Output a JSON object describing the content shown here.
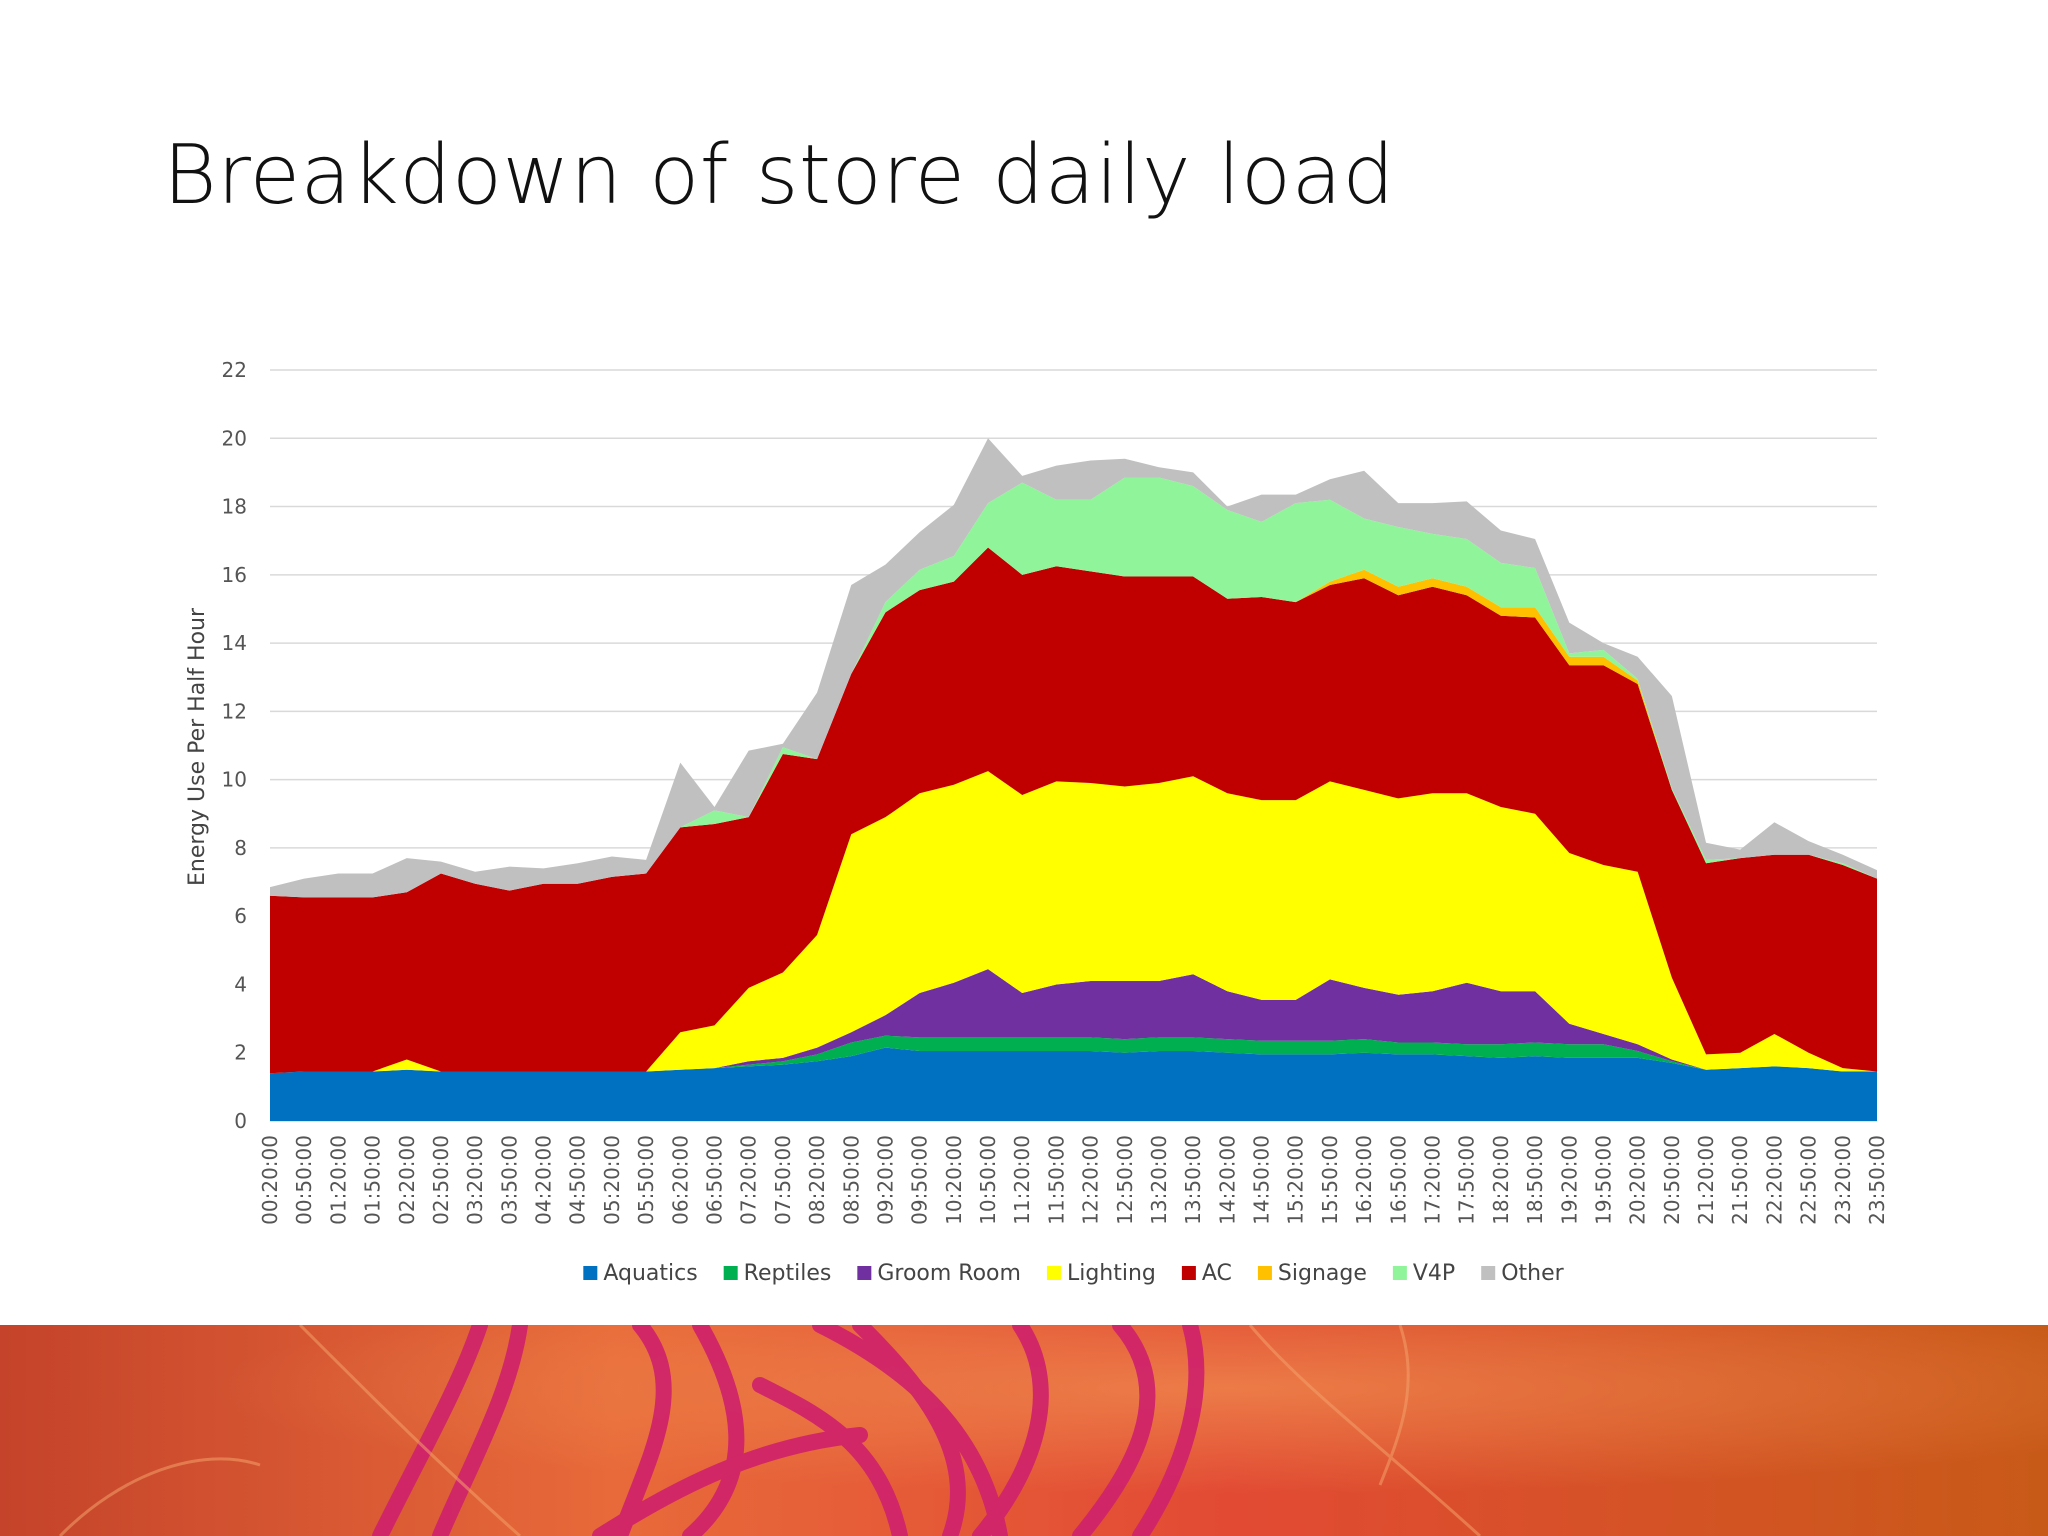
{
  "slide": {
    "title": "Breakdown of store daily load"
  },
  "chart_data": {
    "type": "area",
    "stacked": true,
    "title": "",
    "xlabel": "",
    "ylabel": "Energy Use Per Half Hour",
    "ylim": [
      0,
      22
    ],
    "yticks": [
      0,
      2,
      4,
      6,
      8,
      10,
      12,
      14,
      16,
      18,
      20,
      22
    ],
    "grid": true,
    "legend_position": "bottom",
    "x": [
      "00:20:00",
      "00:50:00",
      "01:20:00",
      "01:50:00",
      "02:20:00",
      "02:50:00",
      "03:20:00",
      "03:50:00",
      "04:20:00",
      "04:50:00",
      "05:20:00",
      "05:50:00",
      "06:20:00",
      "06:50:00",
      "07:20:00",
      "07:50:00",
      "08:20:00",
      "08:50:00",
      "09:20:00",
      "09:50:00",
      "10:20:00",
      "10:50:00",
      "11:20:00",
      "11:50:00",
      "12:20:00",
      "12:50:00",
      "13:20:00",
      "13:50:00",
      "14:20:00",
      "14:50:00",
      "15:20:00",
      "15:50:00",
      "16:20:00",
      "16:50:00",
      "17:20:00",
      "17:50:00",
      "18:20:00",
      "18:50:00",
      "19:20:00",
      "19:50:00",
      "20:20:00",
      "20:50:00",
      "21:20:00",
      "21:50:00",
      "22:20:00",
      "22:50:00",
      "23:20:00",
      "23:50:00"
    ],
    "series": [
      {
        "name": "Aquatics",
        "color": "#0070c0",
        "values": [
          1.4,
          1.45,
          1.45,
          1.45,
          1.5,
          1.45,
          1.45,
          1.45,
          1.45,
          1.45,
          1.45,
          1.45,
          1.5,
          1.55,
          1.6,
          1.65,
          1.75,
          1.9,
          2.15,
          2.05,
          2.05,
          2.05,
          2.05,
          2.05,
          2.05,
          2.0,
          2.05,
          2.05,
          2.0,
          1.95,
          1.95,
          1.95,
          2.0,
          1.95,
          1.95,
          1.9,
          1.85,
          1.9,
          1.85,
          1.85,
          1.85,
          1.7,
          1.5,
          1.55,
          1.6,
          1.55,
          1.45,
          1.45
        ]
      },
      {
        "name": "Reptiles",
        "color": "#00b050",
        "values": [
          0,
          0,
          0,
          0,
          0,
          0,
          0,
          0,
          0,
          0,
          0,
          0,
          0,
          0,
          0.05,
          0.1,
          0.2,
          0.4,
          0.35,
          0.4,
          0.4,
          0.4,
          0.4,
          0.4,
          0.4,
          0.4,
          0.4,
          0.4,
          0.4,
          0.4,
          0.4,
          0.4,
          0.4,
          0.35,
          0.35,
          0.35,
          0.4,
          0.4,
          0.4,
          0.4,
          0.2,
          0.05,
          0,
          0,
          0,
          0,
          0,
          0
        ]
      },
      {
        "name": "Groom Room",
        "color": "#7030a0",
        "values": [
          0,
          0,
          0,
          0,
          0,
          0,
          0,
          0,
          0,
          0,
          0,
          0,
          0,
          0,
          0.1,
          0.1,
          0.2,
          0.3,
          0.6,
          1.3,
          1.6,
          2.0,
          1.3,
          1.55,
          1.65,
          1.7,
          1.65,
          1.85,
          1.4,
          1.2,
          1.2,
          1.8,
          1.5,
          1.4,
          1.5,
          1.8,
          1.55,
          1.5,
          0.6,
          0.3,
          0.2,
          0.05,
          0,
          0,
          0,
          0,
          0,
          0
        ]
      },
      {
        "name": "Lighting",
        "color": "#ffff00",
        "values": [
          0,
          0,
          0,
          0,
          0.3,
          0,
          0,
          0,
          0,
          0,
          0,
          0,
          1.1,
          1.25,
          2.15,
          2.5,
          3.3,
          5.8,
          5.8,
          5.85,
          5.8,
          5.8,
          5.8,
          5.95,
          5.8,
          5.7,
          5.8,
          5.8,
          5.8,
          5.85,
          5.85,
          5.8,
          5.8,
          5.75,
          5.8,
          5.55,
          5.4,
          5.2,
          5.0,
          4.95,
          5.05,
          2.4,
          0.45,
          0.45,
          0.95,
          0.45,
          0.1,
          0
        ]
      },
      {
        "name": "AC",
        "color": "#c00000",
        "values": [
          5.2,
          5.1,
          5.1,
          5.1,
          4.9,
          5.8,
          5.5,
          5.3,
          5.5,
          5.5,
          5.7,
          5.8,
          6.0,
          5.9,
          5.0,
          6.4,
          5.15,
          4.7,
          6.0,
          5.95,
          5.95,
          6.55,
          6.45,
          6.3,
          6.2,
          6.15,
          6.05,
          5.85,
          5.7,
          5.95,
          5.8,
          5.75,
          6.2,
          5.95,
          6.05,
          5.8,
          5.6,
          5.75,
          5.5,
          5.85,
          5.5,
          5.5,
          5.6,
          5.7,
          5.25,
          5.8,
          5.95,
          5.65
        ]
      },
      {
        "name": "Signage",
        "color": "#ffc000",
        "values": [
          0,
          0,
          0,
          0,
          0,
          0,
          0,
          0,
          0,
          0,
          0,
          0,
          0,
          0,
          0,
          0,
          0,
          0,
          0,
          0,
          0,
          0,
          0,
          0,
          0,
          0,
          0,
          0,
          0,
          0,
          0,
          0.1,
          0.25,
          0.25,
          0.25,
          0.25,
          0.25,
          0.3,
          0.25,
          0.25,
          0.1,
          0,
          0,
          0,
          0,
          0,
          0,
          0
        ]
      },
      {
        "name": "V4P",
        "color": "#90f59a",
        "values": [
          0,
          0,
          0,
          0,
          0,
          0,
          0,
          0,
          0,
          0,
          0,
          0,
          0,
          0.4,
          0,
          0.2,
          0,
          0,
          0.3,
          0.6,
          0.75,
          1.3,
          2.7,
          1.95,
          2.1,
          2.9,
          2.9,
          2.65,
          2.6,
          2.2,
          2.9,
          2.4,
          1.5,
          1.75,
          1.3,
          1.4,
          1.3,
          1.15,
          0.1,
          0.2,
          0.05,
          0.05,
          0.1,
          0,
          0,
          0,
          0.05,
          0
        ]
      },
      {
        "name": "Other",
        "color": "#c0c0c0",
        "values": [
          0.25,
          0.55,
          0.7,
          0.7,
          1.0,
          0.35,
          0.35,
          0.7,
          0.45,
          0.6,
          0.6,
          0.4,
          1.9,
          0.1,
          1.95,
          0.1,
          1.95,
          2.6,
          1.1,
          1.1,
          1.5,
          1.9,
          0.2,
          1.0,
          1.15,
          0.55,
          0.3,
          0.4,
          0.1,
          0.8,
          0.25,
          0.6,
          1.4,
          0.7,
          0.9,
          1.1,
          0.95,
          0.85,
          0.9,
          0.2,
          0.65,
          2.7,
          0.5,
          0.25,
          0.95,
          0.4,
          0.25,
          0.25
        ]
      }
    ]
  }
}
